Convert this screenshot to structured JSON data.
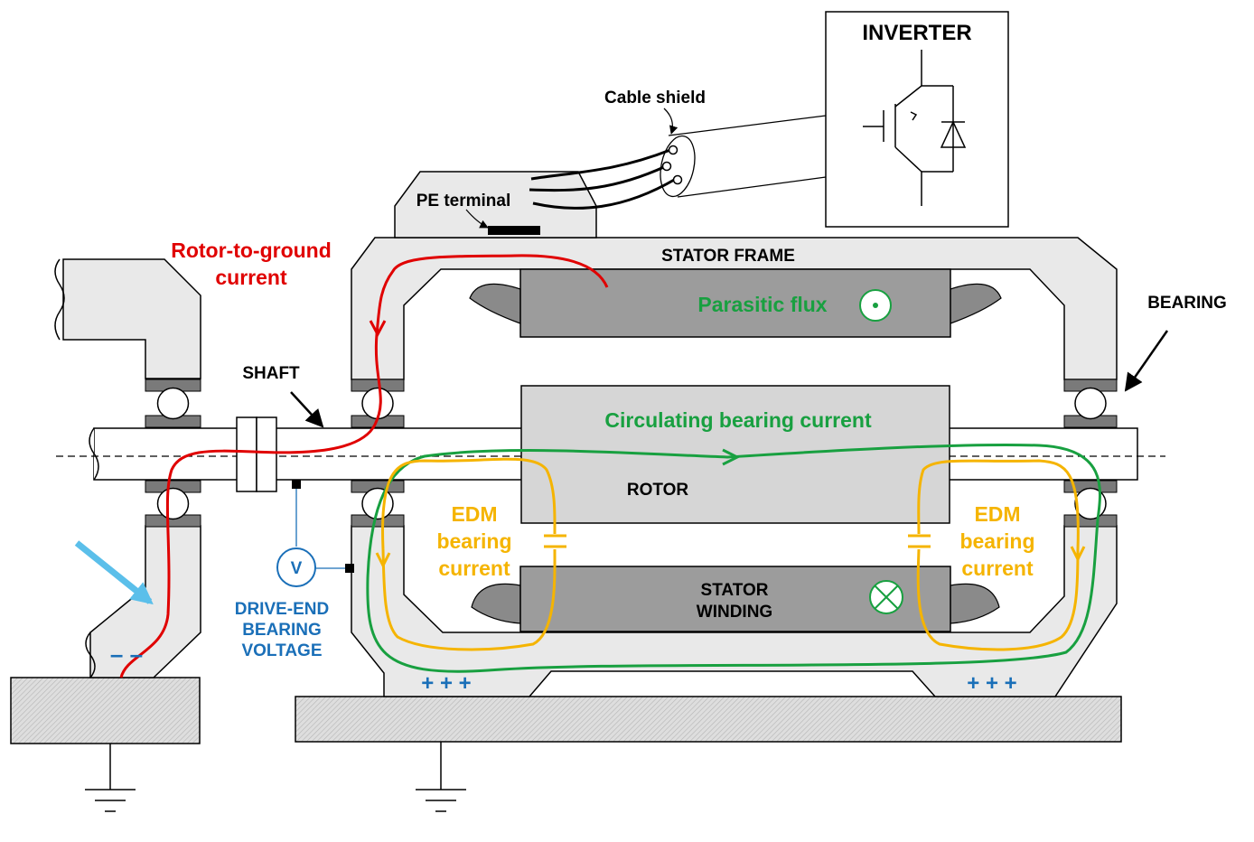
{
  "labels": {
    "inverter": "INVERTER",
    "cable_shield": "Cable shield",
    "pe_terminal": "PE terminal",
    "rotor_to_ground_line1": "Rotor-to-ground",
    "rotor_to_ground_line2": "current",
    "stator_frame": "STATOR FRAME",
    "bearing": "BEARING",
    "parasitic_flux": "Parasitic flux",
    "shaft": "SHAFT",
    "circulating_bearing_current": "Circulating bearing current",
    "rotor": "ROTOR",
    "edm_left": [
      "EDM",
      "bearing",
      "current"
    ],
    "edm_right": [
      "EDM",
      "bearing",
      "current"
    ],
    "stator_winding": [
      "STATOR",
      "WINDING"
    ],
    "voltmeter": "V",
    "drive_end_voltage": [
      "DRIVE-END",
      "BEARING",
      "VOLTAGE"
    ],
    "minus_signs": "–   –",
    "plus_signs_left": "+ + +",
    "plus_signs_right": "+ + +"
  },
  "colors": {
    "rotor_to_ground": "#e00000",
    "circulating": "#18a040",
    "edm": "#f5b400",
    "voltage": "#1a6fb8",
    "stray_arrow": "#5bbfea",
    "frame_fill": "#e9e9e9",
    "core_fill": "#9c9c9c",
    "rotor_fill": "#d6d6d6"
  },
  "icons": {
    "flux_out_of_page": "dot-in-circle-icon",
    "flux_into_page": "cross-in-circle-icon",
    "igbt": "igbt-with-diode-icon",
    "ground": "ground-symbol-icon"
  }
}
